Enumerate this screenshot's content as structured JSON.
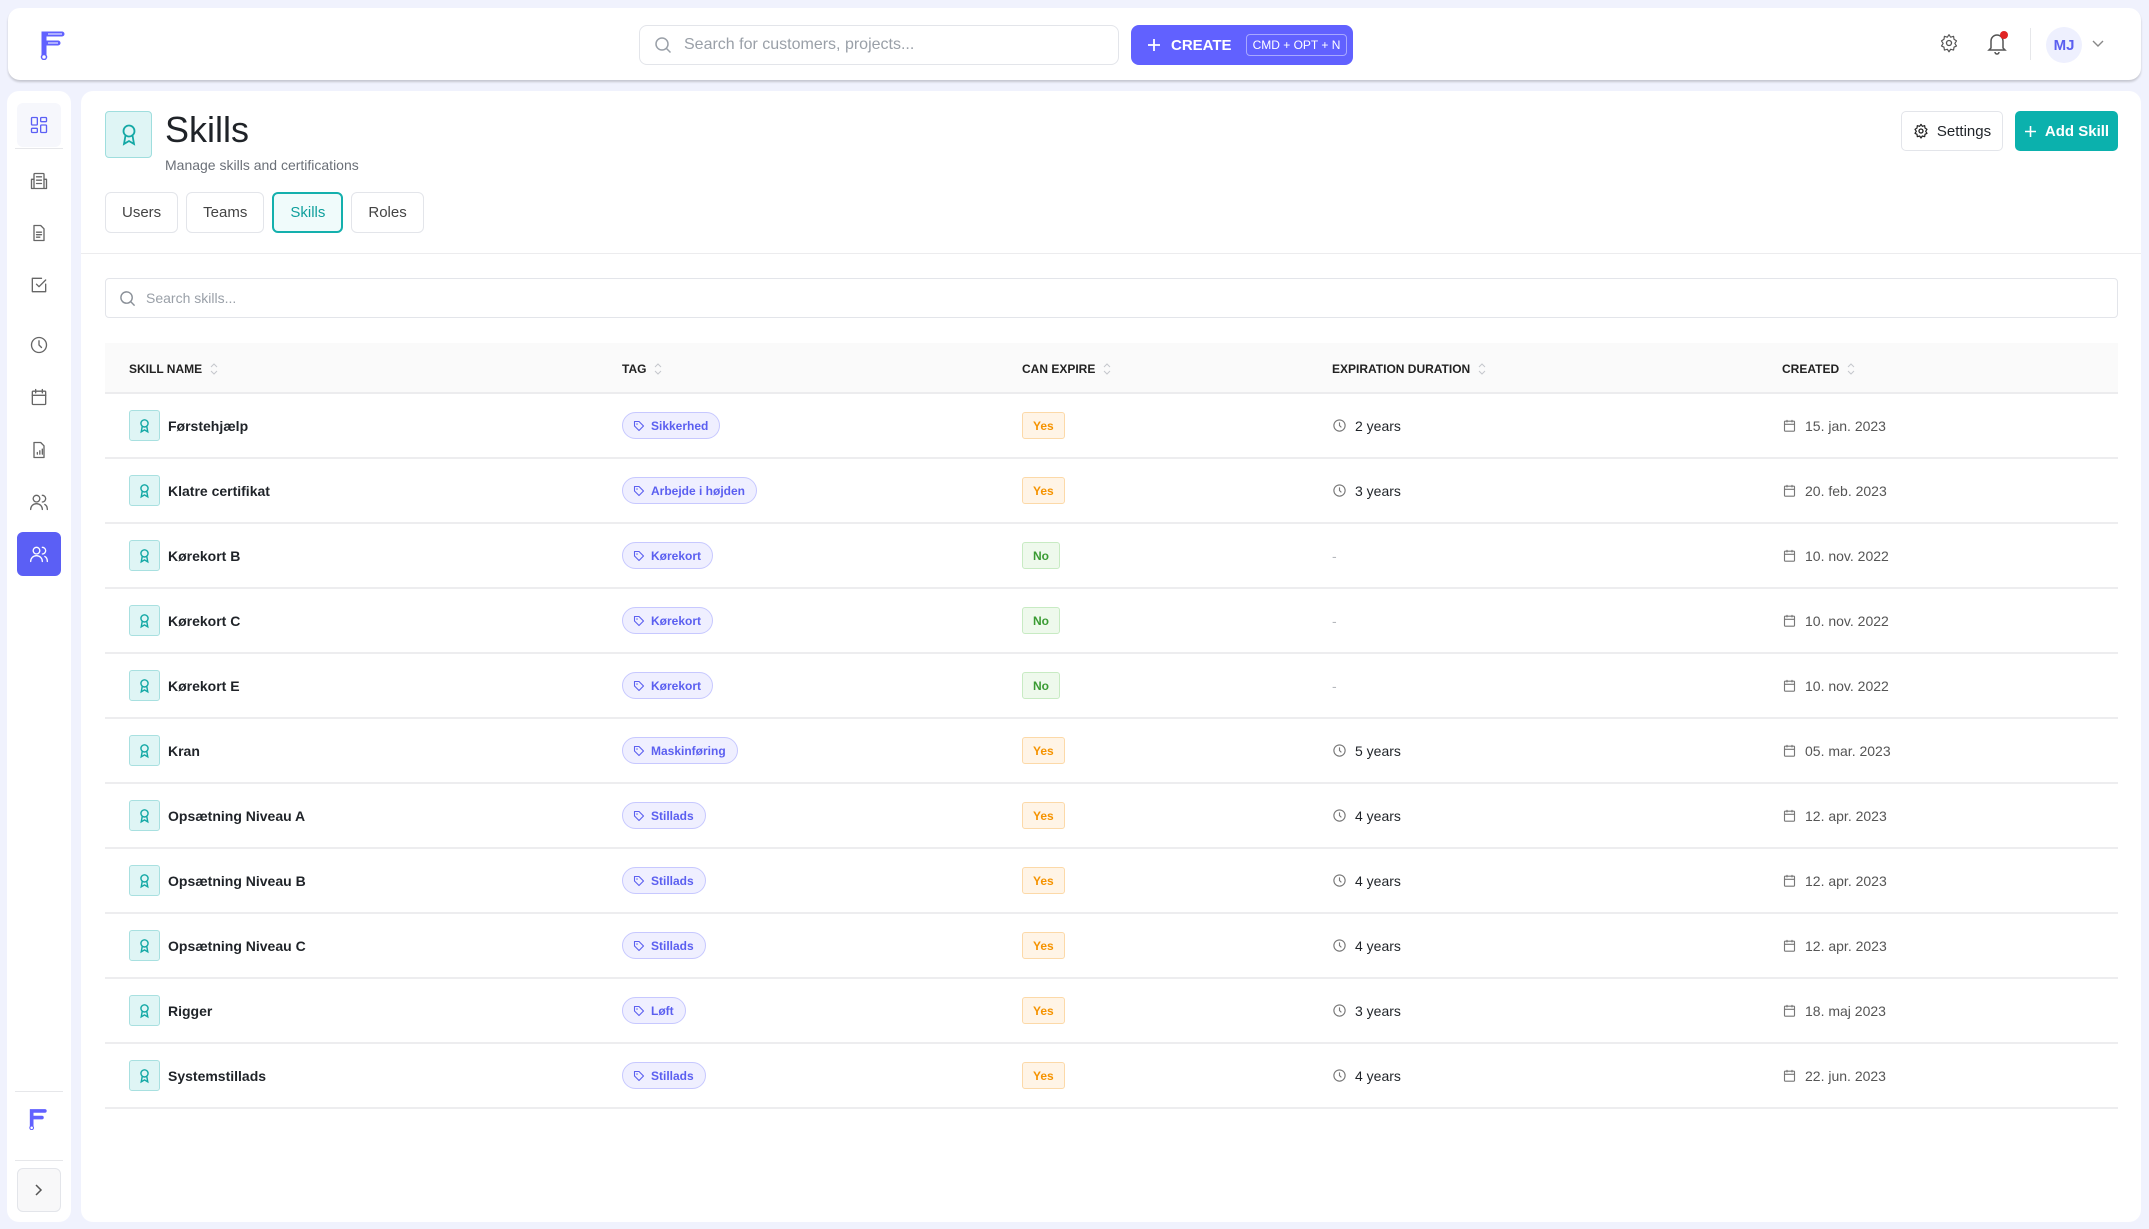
{
  "topbar": {
    "search_placeholder": "Search for customers, projects...",
    "create_label": "CREATE",
    "create_shortcut": "CMD + OPT + N",
    "avatar_initials": "MJ",
    "notification_dot": true
  },
  "sidebar": {
    "items": [
      {
        "icon": "dashboard-icon"
      },
      {
        "icon": "building-icon"
      },
      {
        "icon": "document-icon"
      },
      {
        "icon": "checkbox-icon"
      },
      {
        "icon": "clock-icon"
      },
      {
        "icon": "calendar-icon"
      },
      {
        "icon": "report-icon"
      },
      {
        "icon": "users-icon"
      },
      {
        "icon": "team-icon",
        "active": true
      }
    ]
  },
  "page": {
    "title": "Skills",
    "subtitle": "Manage skills and certifications",
    "settings_label": "Settings",
    "add_label": "Add Skill",
    "search_placeholder": "Search skills...",
    "tabs": [
      {
        "label": "Users"
      },
      {
        "label": "Teams"
      },
      {
        "label": "Skills",
        "active": true
      },
      {
        "label": "Roles"
      }
    ]
  },
  "colors": {
    "accent": "#0bb1ad",
    "brand": "#6161ff",
    "yes": "#f59300",
    "no": "#3a9b33"
  },
  "table": {
    "columns": [
      "SKILL NAME",
      "TAG",
      "CAN EXPIRE",
      "EXPIRATION DURATION",
      "CREATED"
    ],
    "rows": [
      {
        "name": "Førstehjælp",
        "tag": "Sikkerhed",
        "can_expire": "Yes",
        "duration": "2 years",
        "created": "15. jan. 2023"
      },
      {
        "name": "Klatre certifikat",
        "tag": "Arbejde i højden",
        "can_expire": "Yes",
        "duration": "3 years",
        "created": "20. feb. 2023"
      },
      {
        "name": "Kørekort B",
        "tag": "Kørekort",
        "can_expire": "No",
        "duration": "-",
        "created": "10. nov. 2022"
      },
      {
        "name": "Kørekort C",
        "tag": "Kørekort",
        "can_expire": "No",
        "duration": "-",
        "created": "10. nov. 2022"
      },
      {
        "name": "Kørekort E",
        "tag": "Kørekort",
        "can_expire": "No",
        "duration": "-",
        "created": "10. nov. 2022"
      },
      {
        "name": "Kran",
        "tag": "Maskinføring",
        "can_expire": "Yes",
        "duration": "5 years",
        "created": "05. mar. 2023"
      },
      {
        "name": "Opsætning Niveau A",
        "tag": "Stillads",
        "can_expire": "Yes",
        "duration": "4 years",
        "created": "12. apr. 2023"
      },
      {
        "name": "Opsætning Niveau B",
        "tag": "Stillads",
        "can_expire": "Yes",
        "duration": "4 years",
        "created": "12. apr. 2023"
      },
      {
        "name": "Opsætning Niveau C",
        "tag": "Stillads",
        "can_expire": "Yes",
        "duration": "4 years",
        "created": "12. apr. 2023"
      },
      {
        "name": "Rigger",
        "tag": "Løft",
        "can_expire": "Yes",
        "duration": "3 years",
        "created": "18. maj 2023"
      },
      {
        "name": "Systemstillads",
        "tag": "Stillads",
        "can_expire": "Yes",
        "duration": "4 years",
        "created": "22. jun. 2023"
      }
    ]
  }
}
